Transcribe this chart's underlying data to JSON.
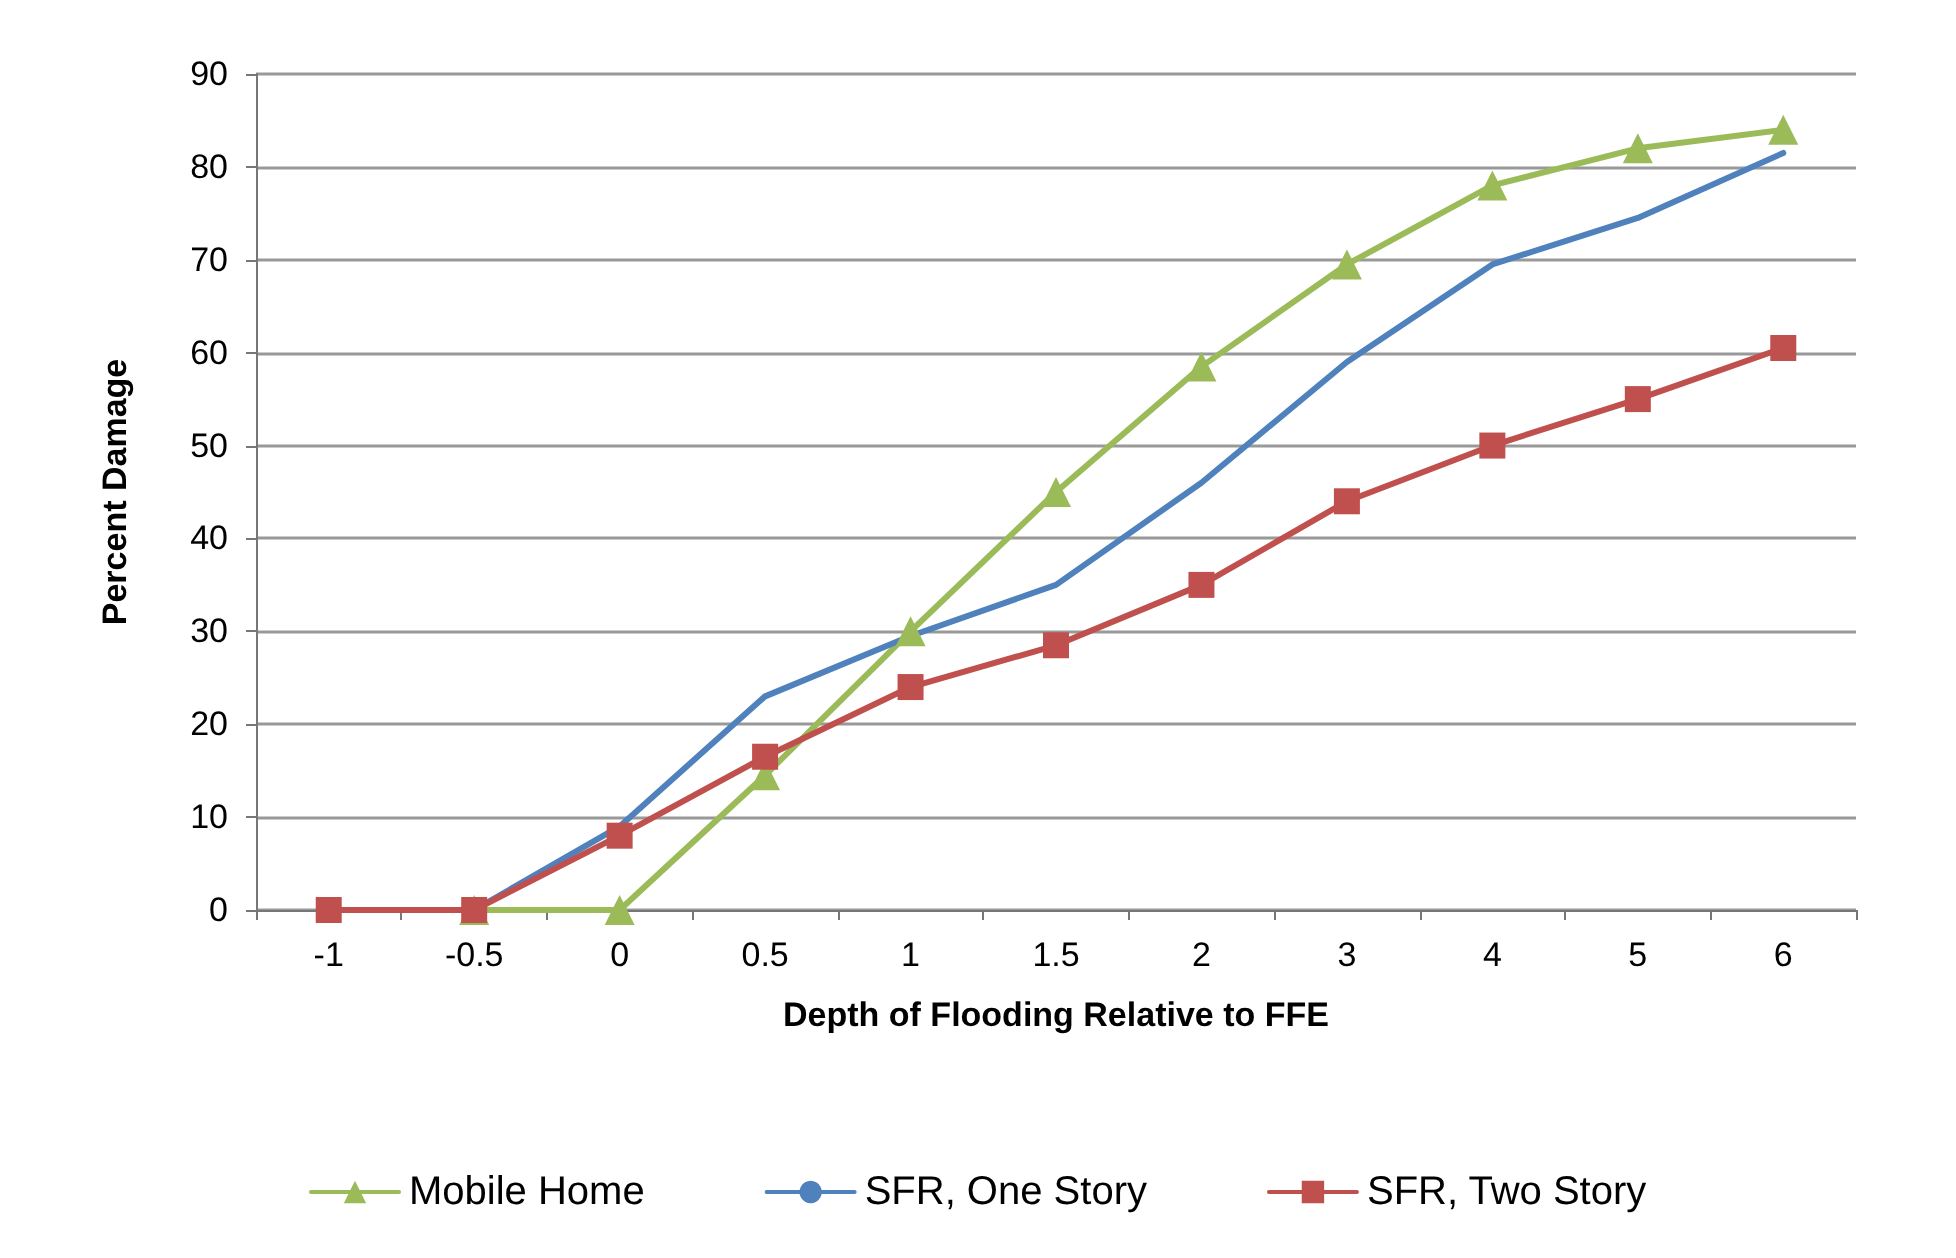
{
  "chart_data": {
    "type": "line",
    "xlabel": "Depth of Flooding Relative to FFE",
    "ylabel": "Percent Damage",
    "categories": [
      "-1",
      "-0.5",
      "0",
      "0.5",
      "1",
      "1.5",
      "2",
      "3",
      "4",
      "5",
      "6"
    ],
    "series": [
      {
        "name": "Mobile Home",
        "color": "#9bbb59",
        "marker": "triangle",
        "values": [
          null,
          0,
          0,
          14.5,
          30,
          45,
          58.5,
          69.5,
          78,
          82,
          84
        ]
      },
      {
        "name": "SFR, One Story",
        "color": "#4f81bd",
        "marker": "none",
        "values": [
          null,
          0,
          9,
          23,
          29.5,
          35,
          46,
          59,
          69.5,
          74.5,
          81.5
        ]
      },
      {
        "name": "SFR, Two Story",
        "color": "#c0504d",
        "marker": "square",
        "values": [
          0,
          0,
          8,
          16.5,
          24,
          28.5,
          35,
          44,
          50,
          55,
          60.5
        ]
      }
    ],
    "ylim": [
      0,
      90
    ],
    "yticks": [
      0,
      10,
      20,
      30,
      40,
      50,
      60,
      70,
      80,
      90
    ],
    "grid": "y",
    "legend": "bottom"
  }
}
